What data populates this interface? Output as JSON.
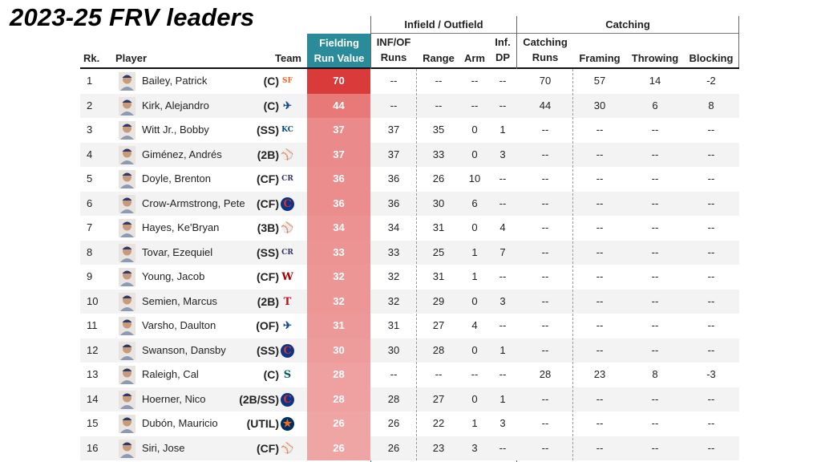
{
  "title": "2023-25 FRV leaders",
  "groups": {
    "infield_outfield": "Infield / Outfield",
    "catching": "Catching"
  },
  "columns": {
    "rank": "Rk.",
    "player": "Player",
    "team": "Team",
    "frv_line1": "Fielding",
    "frv_line2": "Run Value",
    "infof_line1": "INF/OF",
    "infof_line2": "Runs",
    "range": "Range",
    "arm": "Arm",
    "infdp_line1": "Inf.",
    "infdp_line2": "DP",
    "catch_line1": "Catching",
    "catch_line2": "Runs",
    "framing": "Framing",
    "throwing": "Throwing",
    "blocking": "Blocking"
  },
  "colors": {
    "frv_header": "#2a8c9a",
    "frv_high": "#d93a3a",
    "frv_low": "#f0a5a5"
  },
  "chart_data": {
    "type": "table",
    "title": "2023-25 FRV leaders",
    "rows": [
      {
        "rank": "1",
        "player": "Bailey, Patrick",
        "pos": "(C)",
        "team_icon": "giants-logo-icon",
        "frv": 70,
        "infof": "--",
        "range": "--",
        "arm": "--",
        "infdp": "--",
        "catch": "70",
        "framing": "57",
        "throwing": "14",
        "blocking": "-2"
      },
      {
        "rank": "2",
        "player": "Kirk, Alejandro",
        "pos": "(C)",
        "team_icon": "blue-jays-logo-icon",
        "frv": 44,
        "infof": "--",
        "range": "--",
        "arm": "--",
        "infdp": "--",
        "catch": "44",
        "framing": "30",
        "throwing": "6",
        "blocking": "8"
      },
      {
        "rank": "3",
        "player": "Witt Jr., Bobby",
        "pos": "(SS)",
        "team_icon": "royals-logo-icon",
        "frv": 37,
        "infof": "37",
        "range": "35",
        "arm": "0",
        "infdp": "1",
        "catch": "--",
        "framing": "--",
        "throwing": "--",
        "blocking": "--"
      },
      {
        "rank": "4",
        "player": "Giménez, Andrés",
        "pos": "(2B)",
        "team_icon": "mlb-logo-icon",
        "frv": 37,
        "infof": "37",
        "range": "33",
        "arm": "0",
        "infdp": "3",
        "catch": "--",
        "framing": "--",
        "throwing": "--",
        "blocking": "--"
      },
      {
        "rank": "5",
        "player": "Doyle, Brenton",
        "pos": "(CF)",
        "team_icon": "rockies-logo-icon",
        "frv": 36,
        "infof": "36",
        "range": "26",
        "arm": "10",
        "infdp": "--",
        "catch": "--",
        "framing": "--",
        "throwing": "--",
        "blocking": "--"
      },
      {
        "rank": "6",
        "player": "Crow-Armstrong, Pete",
        "pos": "(CF)",
        "team_icon": "cubs-logo-icon",
        "frv": 36,
        "infof": "36",
        "range": "30",
        "arm": "6",
        "infdp": "--",
        "catch": "--",
        "framing": "--",
        "throwing": "--",
        "blocking": "--"
      },
      {
        "rank": "7",
        "player": "Hayes, Ke'Bryan",
        "pos": "(3B)",
        "team_icon": "mlb-logo-icon",
        "frv": 34,
        "infof": "34",
        "range": "31",
        "arm": "0",
        "infdp": "4",
        "catch": "--",
        "framing": "--",
        "throwing": "--",
        "blocking": "--"
      },
      {
        "rank": "8",
        "player": "Tovar, Ezequiel",
        "pos": "(SS)",
        "team_icon": "rockies-logo-icon",
        "frv": 33,
        "infof": "33",
        "range": "25",
        "arm": "1",
        "infdp": "7",
        "catch": "--",
        "framing": "--",
        "throwing": "--",
        "blocking": "--"
      },
      {
        "rank": "9",
        "player": "Young, Jacob",
        "pos": "(CF)",
        "team_icon": "nationals-logo-icon",
        "frv": 32,
        "infof": "32",
        "range": "31",
        "arm": "1",
        "infdp": "--",
        "catch": "--",
        "framing": "--",
        "throwing": "--",
        "blocking": "--"
      },
      {
        "rank": "10",
        "player": "Semien, Marcus",
        "pos": "(2B)",
        "team_icon": "rangers-logo-icon",
        "frv": 32,
        "infof": "32",
        "range": "29",
        "arm": "0",
        "infdp": "3",
        "catch": "--",
        "framing": "--",
        "throwing": "--",
        "blocking": "--"
      },
      {
        "rank": "11",
        "player": "Varsho, Daulton",
        "pos": "(OF)",
        "team_icon": "blue-jays-logo-icon",
        "frv": 31,
        "infof": "31",
        "range": "27",
        "arm": "4",
        "infdp": "--",
        "catch": "--",
        "framing": "--",
        "throwing": "--",
        "blocking": "--"
      },
      {
        "rank": "12",
        "player": "Swanson, Dansby",
        "pos": "(SS)",
        "team_icon": "cubs-logo-icon",
        "frv": 30,
        "infof": "30",
        "range": "28",
        "arm": "0",
        "infdp": "1",
        "catch": "--",
        "framing": "--",
        "throwing": "--",
        "blocking": "--"
      },
      {
        "rank": "13",
        "player": "Raleigh, Cal",
        "pos": "(C)",
        "team_icon": "mariners-logo-icon",
        "frv": 28,
        "infof": "--",
        "range": "--",
        "arm": "--",
        "infdp": "--",
        "catch": "28",
        "framing": "23",
        "throwing": "8",
        "blocking": "-3"
      },
      {
        "rank": "14",
        "player": "Hoerner, Nico",
        "pos": "(2B/SS)",
        "team_icon": "cubs-logo-icon",
        "frv": 28,
        "infof": "28",
        "range": "27",
        "arm": "0",
        "infdp": "1",
        "catch": "--",
        "framing": "--",
        "throwing": "--",
        "blocking": "--"
      },
      {
        "rank": "15",
        "player": "Dubón, Mauricio",
        "pos": "(UTIL)",
        "team_icon": "astros-logo-icon",
        "frv": 26,
        "infof": "26",
        "range": "22",
        "arm": "1",
        "infdp": "3",
        "catch": "--",
        "framing": "--",
        "throwing": "--",
        "blocking": "--"
      },
      {
        "rank": "16",
        "player": "Siri, Jose",
        "pos": "(CF)",
        "team_icon": "mlb-logo-icon",
        "frv": 26,
        "infof": "26",
        "range": "23",
        "arm": "3",
        "infdp": "--",
        "catch": "--",
        "framing": "--",
        "throwing": "--",
        "blocking": "--"
      }
    ]
  }
}
